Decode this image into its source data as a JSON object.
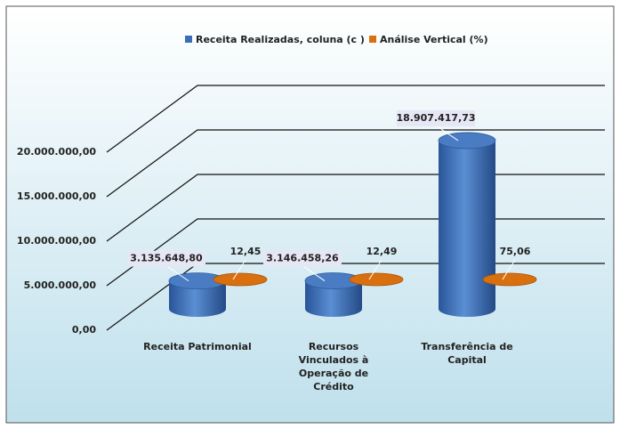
{
  "chart_data": {
    "type": "bar3d",
    "categories": [
      "Receita Patrimonial",
      "Recursos Vinculados à Operação de Crédito",
      "Transferência de Capital"
    ],
    "series": [
      {
        "name": "Receita Realizadas, coluna (c )",
        "color": "#3a6fb8",
        "values": [
          3135648.8,
          3146458.26,
          18907417.73
        ],
        "value_labels": [
          "3.135.648,80",
          "3.146.458,26",
          "18.907.417,73"
        ]
      },
      {
        "name": "Análise Vertical (%)",
        "color": "#d9700f",
        "values": [
          12.45,
          12.49,
          75.06
        ],
        "value_labels": [
          "12,45",
          "12,49",
          "75,06"
        ]
      }
    ],
    "ylim": [
      0,
      20000000
    ],
    "yticks": [
      {
        "value": 0,
        "label": "0,00"
      },
      {
        "value": 5000000,
        "label": "5.000.000,00"
      },
      {
        "value": 10000000,
        "label": "10.000.000,00"
      },
      {
        "value": 15000000,
        "label": "15.000.000,00"
      },
      {
        "value": 20000000,
        "label": "20.000.000,00"
      }
    ],
    "legend": "top",
    "grid": true
  }
}
